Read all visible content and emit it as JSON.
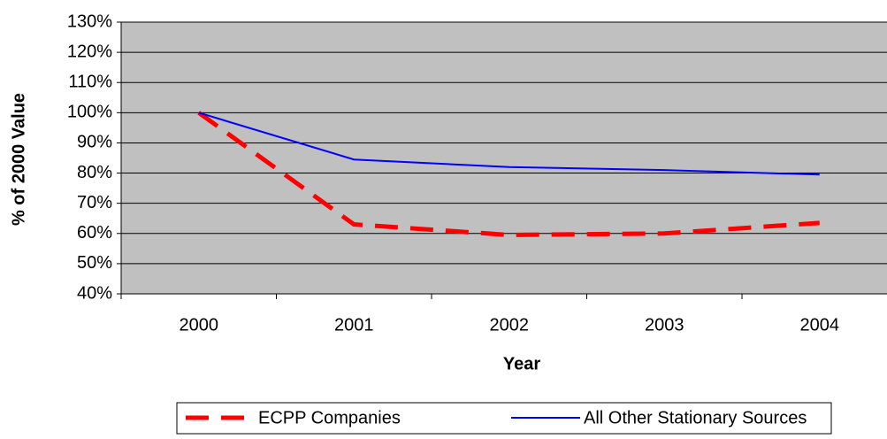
{
  "chart_data": {
    "type": "line",
    "x_label": "Year",
    "y_label": "% of 2000 Value",
    "categories": [
      "2000",
      "2001",
      "2002",
      "2003",
      "2004"
    ],
    "series": [
      {
        "name": "ECPP Companies",
        "color": "#ff0000",
        "dashed": true,
        "values": [
          100,
          63,
          59.5,
          60,
          63.5
        ]
      },
      {
        "name": "All Other Stationary Sources",
        "color": "#0000ff",
        "dashed": false,
        "values": [
          100,
          84.5,
          82,
          81,
          79.5
        ]
      }
    ],
    "ylim": [
      40,
      130
    ],
    "yticks": [
      {
        "value": 40,
        "label": "40%"
      },
      {
        "value": 50,
        "label": "50%"
      },
      {
        "value": 60,
        "label": "60%"
      },
      {
        "value": 70,
        "label": "70%"
      },
      {
        "value": 80,
        "label": "80%"
      },
      {
        "value": 90,
        "label": "90%"
      },
      {
        "value": 100,
        "label": "100%"
      },
      {
        "value": 110,
        "label": "110%"
      },
      {
        "value": 120,
        "label": "120%"
      },
      {
        "value": 130,
        "label": "130%"
      }
    ],
    "grid": true,
    "legend": "bottom"
  }
}
